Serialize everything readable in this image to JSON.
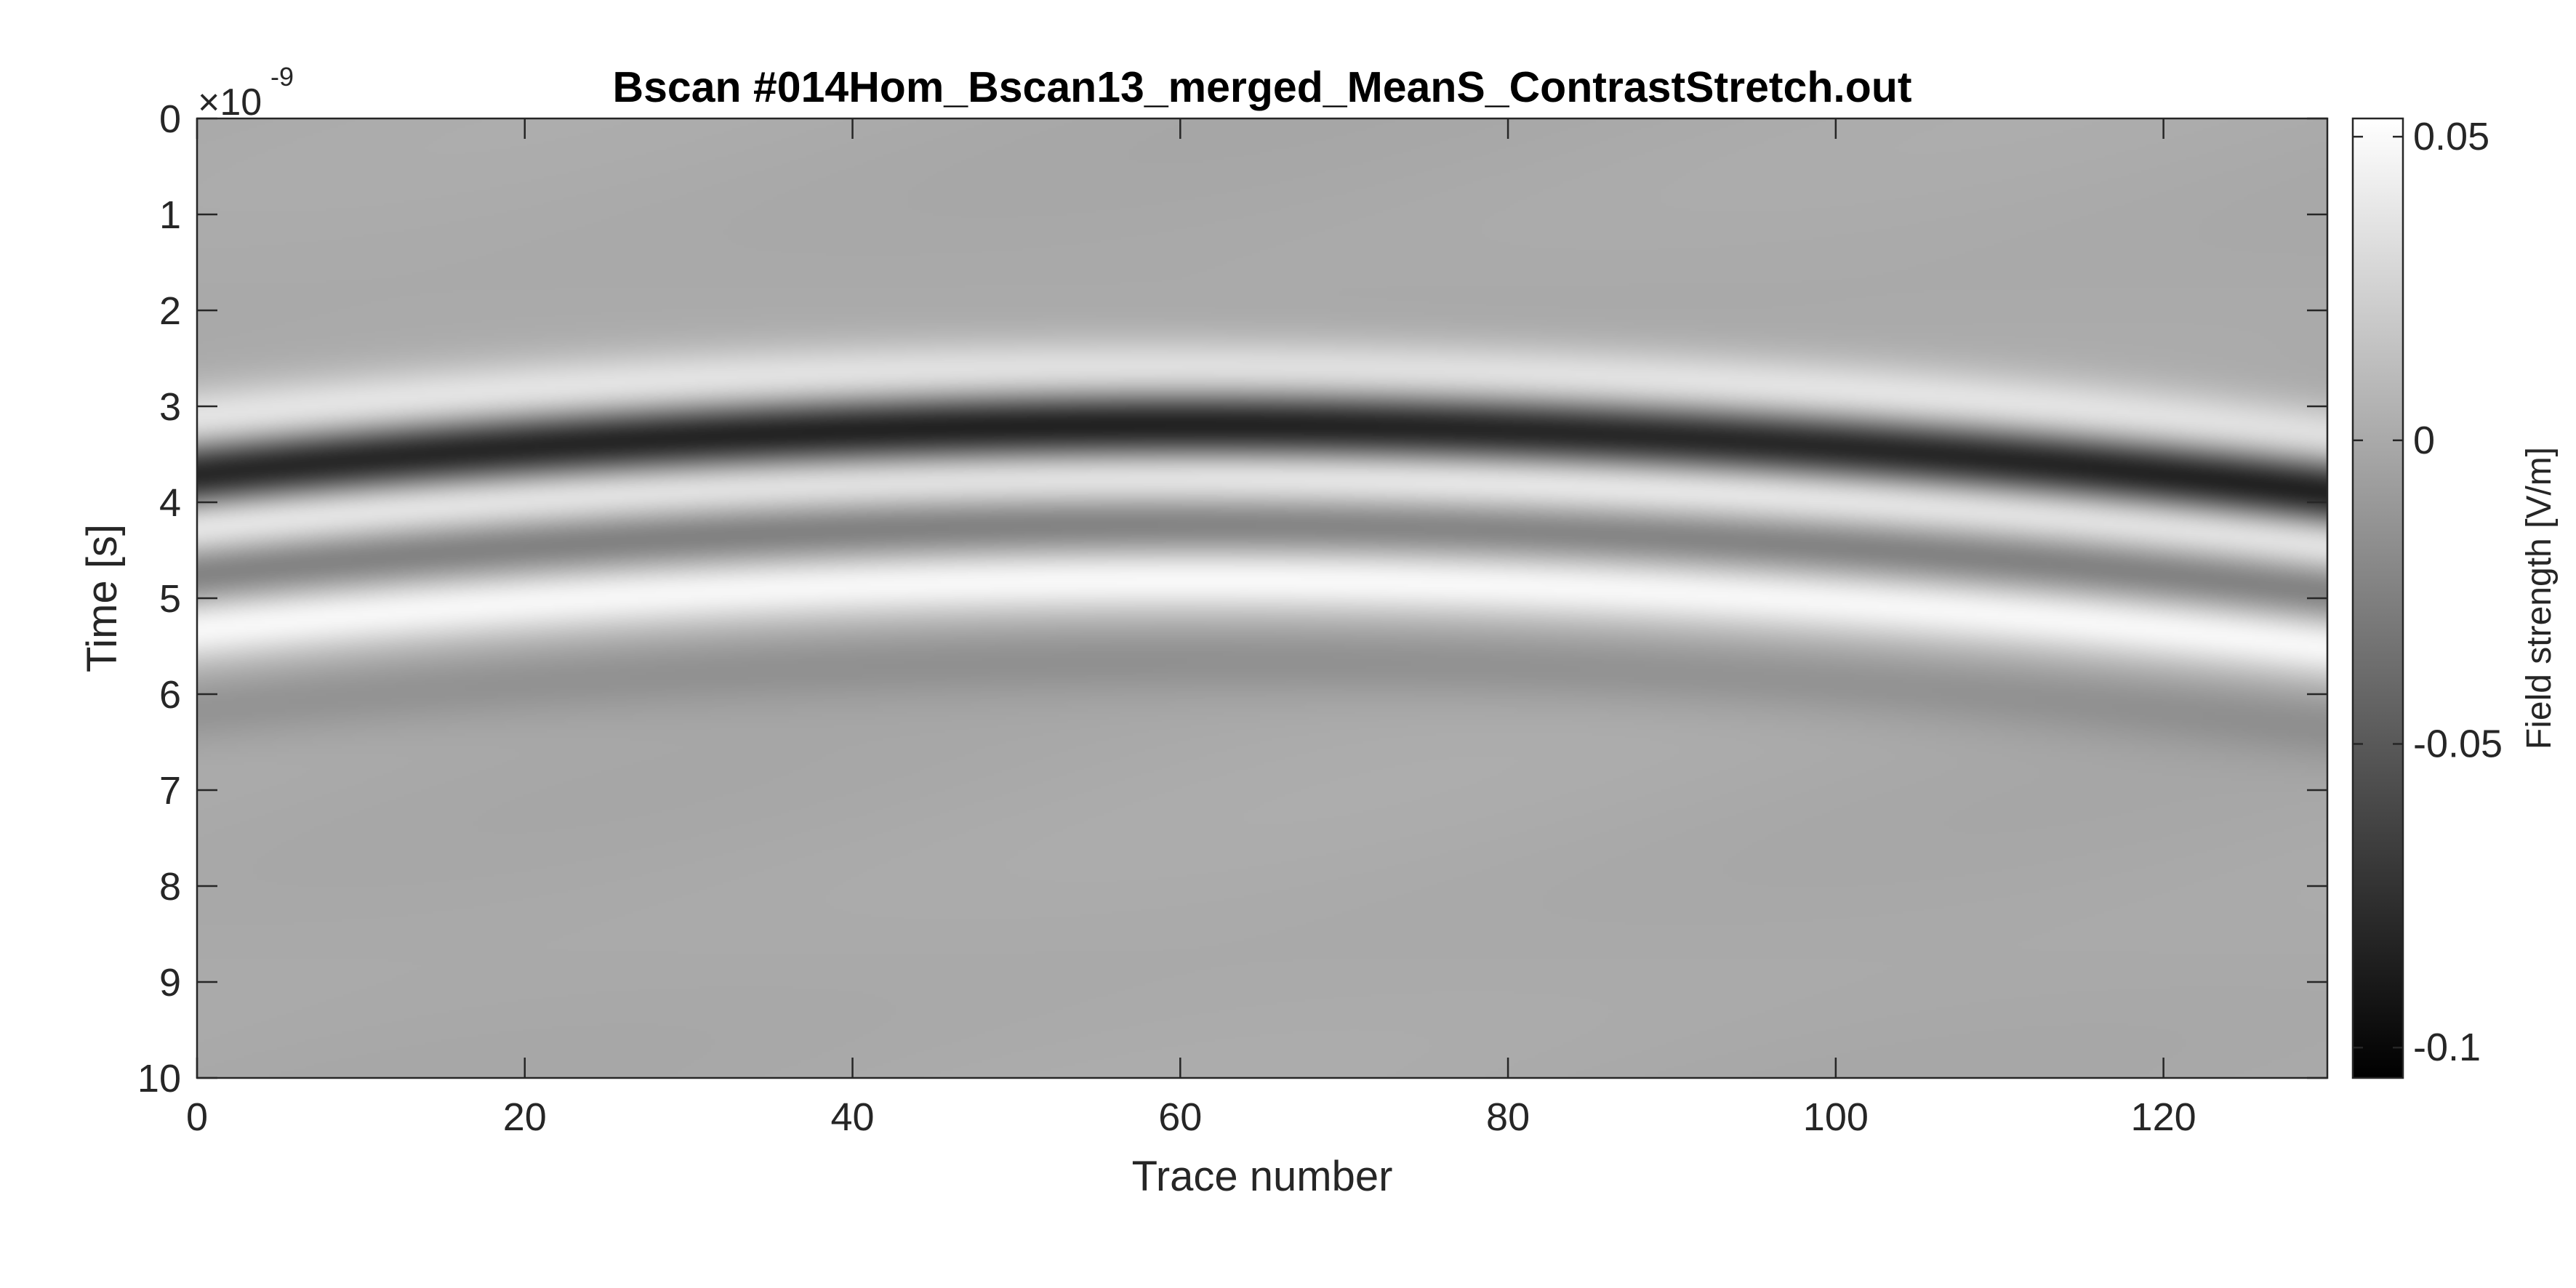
{
  "chart_data": {
    "type": "heatmap",
    "title": "Bscan #014Hom_Bscan13_merged_MeanS_ContrastStretch.out",
    "xlabel": "Trace number",
    "ylabel": "Time [s]",
    "y_exponent_base": "×10",
    "y_exponent_power": "-9",
    "xlim": [
      0,
      130
    ],
    "ylim": [
      0,
      10
    ],
    "x_ticks": [
      0,
      20,
      40,
      60,
      80,
      100,
      120
    ],
    "x_tick_labels": [
      "0",
      "20",
      "40",
      "60",
      "80",
      "100",
      "120"
    ],
    "y_ticks": [
      0,
      1,
      2,
      3,
      4,
      5,
      6,
      7,
      8,
      9,
      10
    ],
    "y_tick_labels": [
      "0",
      "1",
      "2",
      "3",
      "4",
      "5",
      "6",
      "7",
      "8",
      "9",
      "10"
    ],
    "y_reversed": true,
    "colormap": "gray",
    "colorbar": {
      "label": "Field strength [V/m]",
      "clim": [
        -0.105,
        0.053
      ],
      "ticks": [
        0.05,
        0,
        -0.05,
        -0.1
      ],
      "tick_labels": [
        "0.05",
        "0",
        "-0.05",
        "-0.1"
      ]
    },
    "reflection_hyperbola": {
      "apex_trace": 60,
      "apex_time_ns": 3.2,
      "edge_time_ns": 3.9,
      "bands": [
        {
          "offset_ns": -0.55,
          "amplitude": 0.04
        },
        {
          "offset_ns": 0.0,
          "amplitude": -0.09
        },
        {
          "offset_ns": 0.55,
          "amplitude": 0.05
        },
        {
          "offset_ns": 1.0,
          "amplitude": -0.035
        },
        {
          "offset_ns": 1.6,
          "amplitude": 0.05
        },
        {
          "offset_ns": 2.45,
          "amplitude": -0.015
        }
      ]
    }
  }
}
